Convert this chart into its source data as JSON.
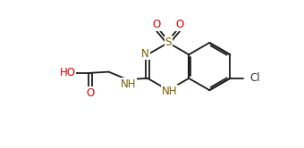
{
  "bg_color": "#ffffff",
  "bond_color": "#1a1a1a",
  "label_color_N": "#7B5B00",
  "label_color_O": "#cc0000",
  "label_color_S": "#7B5B00",
  "label_color_Cl": "#2a3a2a",
  "figsize": [
    3.4,
    1.66
  ],
  "dpi": 100,
  "xlim": [
    0,
    10.5
  ],
  "ylim": [
    0,
    6.8
  ]
}
